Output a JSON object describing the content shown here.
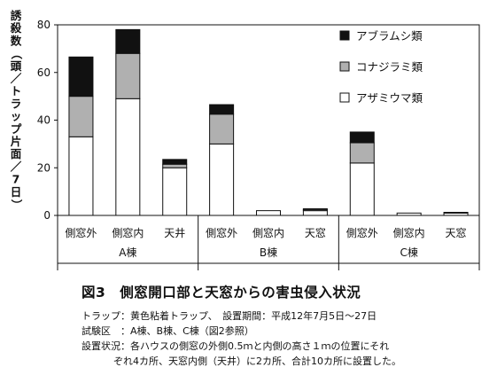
{
  "chart_data": {
    "type": "bar",
    "stacked": true,
    "ylabel": "誘殺数（頭／トラップ片面／7日）",
    "xlabel": "",
    "ylim": [
      0,
      80
    ],
    "yticks": [
      0,
      20,
      40,
      60,
      80
    ],
    "grid": false,
    "legend_position": "top-right",
    "groups": [
      {
        "name": "A棟",
        "categories": [
          "側窓外",
          "側窓内",
          "天井"
        ]
      },
      {
        "name": "B棟",
        "categories": [
          "側窓外",
          "側窓内",
          "天窓"
        ]
      },
      {
        "name": "C棟",
        "categories": [
          "側窓外",
          "側窓内",
          "天窓"
        ]
      }
    ],
    "categories": [
      "側窓外",
      "側窓内",
      "天井",
      "側窓外",
      "側窓内",
      "天窓",
      "側窓外",
      "側窓内",
      "天窓"
    ],
    "series": [
      {
        "name": "アザミウマ類",
        "color": "#ffffff",
        "values": [
          33,
          49,
          20,
          30,
          2,
          2,
          22,
          1,
          1
        ]
      },
      {
        "name": "コナジラミ類",
        "color": "#b0b0b0",
        "values": [
          17,
          19,
          1.5,
          12.5,
          0,
          0.5,
          8.5,
          0,
          0
        ]
      },
      {
        "name": "アブラムシ類",
        "color": "#111111",
        "values": [
          16.5,
          10,
          2,
          4,
          0,
          0.3,
          4.5,
          0,
          0.3
        ]
      }
    ],
    "legend_order": [
      "アブラムシ類",
      "コナジラミ類",
      "アザミウマ類"
    ]
  },
  "caption": {
    "title": "図3　側窓開口部と天窓からの害虫侵入状況",
    "line1": "トラップ：黄色粘着トラップ、　設置期間：平成12年7月5日～27日",
    "line2": "試験区　：A棟、B棟、C棟（図2参照）",
    "line3": "設置状況：各ハウスの側窓の外側0.5ｍと内側の高さ１ｍの位置にそれ",
    "line4": "ぞれ4カ所、天窓内側（天井）に2カ所、合計10カ所に設置した。"
  }
}
